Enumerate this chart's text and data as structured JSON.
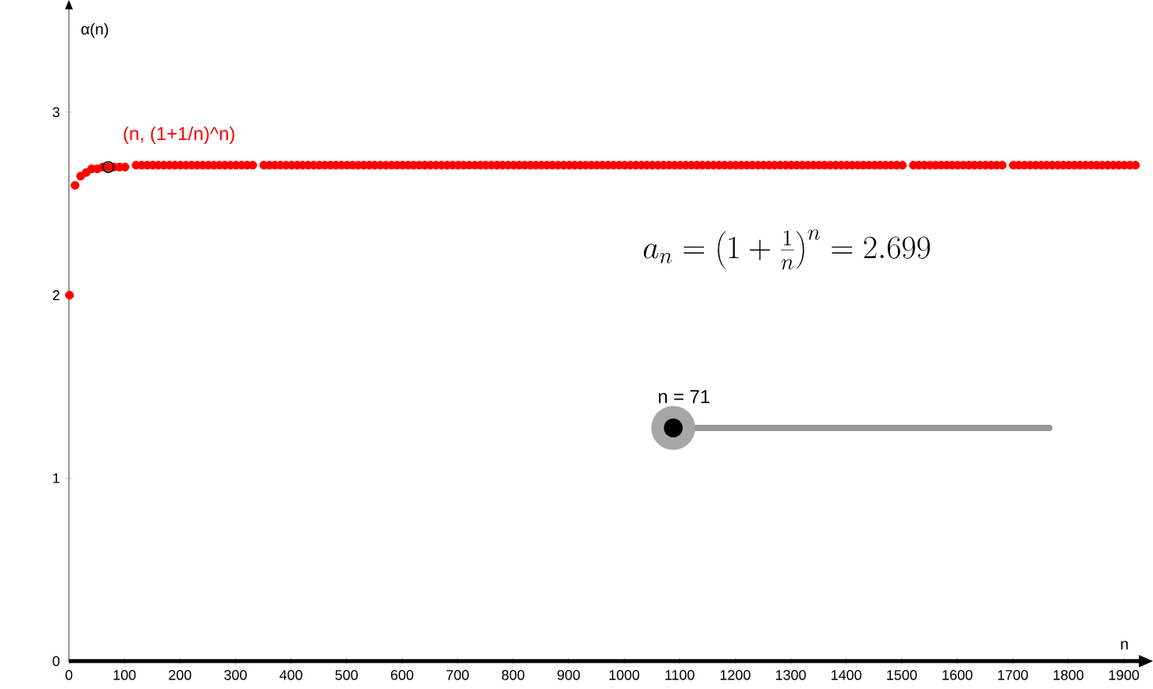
{
  "chart_data": {
    "type": "scatter",
    "xlabel": "n",
    "ylabel": "α(n)",
    "xlim": [
      0,
      1930
    ],
    "ylim": [
      0,
      3.57
    ],
    "xticks": [
      0,
      100,
      200,
      300,
      400,
      500,
      600,
      700,
      800,
      900,
      1000,
      1100,
      1200,
      1300,
      1400,
      1500,
      1600,
      1700,
      1800,
      1900
    ],
    "yticks": [
      0,
      1,
      2,
      3
    ],
    "marker": "circle",
    "annotations": [
      "(n, (1+1/n)^n)",
      "a_n = \\left(1+\\frac{1}{n}\\right)^n = 2.699",
      "n = 71"
    ],
    "series": [
      {
        "color": "#ff0000",
        "x": [
          1,
          11,
          21,
          31,
          41,
          51,
          61,
          71,
          81,
          91,
          101,
          121,
          131,
          141,
          151,
          161,
          171,
          181,
          191,
          201,
          211,
          221,
          231,
          241,
          251,
          261,
          271,
          281,
          291,
          301,
          311,
          321,
          331,
          351,
          361,
          371,
          381,
          391,
          401,
          411,
          421,
          431,
          441,
          451,
          461,
          471,
          481,
          491,
          501,
          511,
          521,
          531,
          541,
          551,
          561,
          571,
          581,
          591,
          601,
          611,
          621,
          631,
          641,
          651,
          661,
          671,
          681,
          691,
          701,
          711,
          721,
          731,
          741,
          751,
          761,
          771,
          781,
          791,
          801,
          811,
          821,
          831,
          841,
          851,
          861,
          871,
          881,
          891,
          901,
          911,
          921,
          931,
          941,
          951,
          961,
          971,
          981,
          991,
          1001,
          1011,
          1021,
          1031,
          1041,
          1051,
          1061,
          1071,
          1081,
          1091,
          1101,
          1111,
          1121,
          1131,
          1141,
          1151,
          1161,
          1171,
          1181,
          1191,
          1201,
          1211,
          1221,
          1231,
          1241,
          1251,
          1261,
          1271,
          1281,
          1291,
          1301,
          1311,
          1321,
          1331,
          1341,
          1351,
          1361,
          1371,
          1381,
          1391,
          1401,
          1411,
          1421,
          1431,
          1441,
          1451,
          1461,
          1471,
          1481,
          1491,
          1501,
          1521,
          1531,
          1541,
          1551,
          1561,
          1571,
          1581,
          1591,
          1601,
          1611,
          1621,
          1631,
          1641,
          1651,
          1661,
          1671,
          1681,
          1701,
          1711,
          1721,
          1731,
          1741,
          1751,
          1761,
          1771,
          1781,
          1791,
          1801,
          1811,
          1821,
          1831,
          1841,
          1851,
          1861,
          1871,
          1881,
          1891,
          1901,
          1911,
          1921
        ],
        "values": [
          2,
          2.6,
          2.65,
          2.67,
          2.69,
          2.69,
          2.7,
          2.7,
          2.7,
          2.7,
          2.7,
          2.71,
          2.71,
          2.71,
          2.71,
          2.71,
          2.71,
          2.71,
          2.71,
          2.71,
          2.71,
          2.71,
          2.71,
          2.71,
          2.71,
          2.71,
          2.71,
          2.71,
          2.71,
          2.71,
          2.71,
          2.71,
          2.71,
          2.71,
          2.71,
          2.71,
          2.71,
          2.71,
          2.71,
          2.71,
          2.71,
          2.71,
          2.71,
          2.71,
          2.71,
          2.71,
          2.71,
          2.71,
          2.71,
          2.71,
          2.71,
          2.71,
          2.71,
          2.71,
          2.71,
          2.71,
          2.71,
          2.71,
          2.71,
          2.71,
          2.71,
          2.71,
          2.71,
          2.71,
          2.71,
          2.71,
          2.71,
          2.71,
          2.71,
          2.71,
          2.71,
          2.71,
          2.71,
          2.71,
          2.71,
          2.71,
          2.71,
          2.71,
          2.71,
          2.71,
          2.71,
          2.71,
          2.71,
          2.71,
          2.71,
          2.71,
          2.71,
          2.71,
          2.71,
          2.71,
          2.71,
          2.71,
          2.71,
          2.71,
          2.71,
          2.71,
          2.71,
          2.71,
          2.71,
          2.71,
          2.71,
          2.71,
          2.71,
          2.71,
          2.71,
          2.71,
          2.71,
          2.71,
          2.71,
          2.71,
          2.71,
          2.71,
          2.71,
          2.71,
          2.71,
          2.71,
          2.71,
          2.71,
          2.71,
          2.71,
          2.71,
          2.71,
          2.71,
          2.71,
          2.71,
          2.71,
          2.71,
          2.71,
          2.71,
          2.71,
          2.71,
          2.71,
          2.71,
          2.71,
          2.71,
          2.71,
          2.71,
          2.71,
          2.71,
          2.71,
          2.71,
          2.71,
          2.71,
          2.71,
          2.71,
          2.71,
          2.71,
          2.71,
          2.71,
          2.71,
          2.71,
          2.71,
          2.71,
          2.71,
          2.71,
          2.71,
          2.71,
          2.71,
          2.71,
          2.71,
          2.71,
          2.71,
          2.71,
          2.71,
          2.71,
          2.71,
          2.71,
          2.71,
          2.71,
          2.71,
          2.71,
          2.71,
          2.71,
          2.71,
          2.71,
          2.71,
          2.71,
          2.71,
          2.71,
          2.71,
          2.71,
          2.71,
          2.71,
          2.71,
          2.71,
          2.71,
          2.71,
          2.71,
          2.71
        ]
      },
      {
        "color": "#000000",
        "x": [
          71
        ],
        "values": [
          2.7
        ]
      }
    ]
  }
}
